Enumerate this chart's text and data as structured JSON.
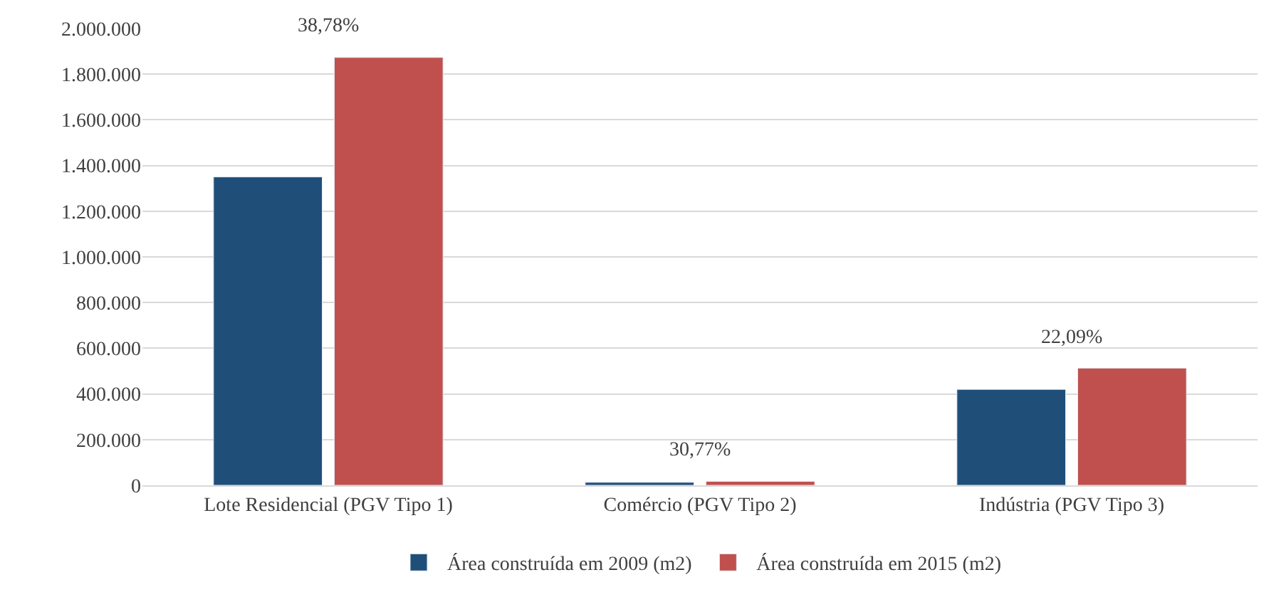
{
  "chart_data": {
    "type": "bar",
    "categories": [
      "Lote Residencial (PGV Tipo 1)",
      "Comércio (PGV Tipo 2)",
      "Indústria (PGV Tipo 3)"
    ],
    "series": [
      {
        "name": "Área construída em 2009 (m2)",
        "color": "#1f4e79",
        "values": [
          1350000,
          13000,
          420000
        ]
      },
      {
        "name": "Área construída em 2015 (m2)",
        "color": "#c0504d",
        "values": [
          1873000,
          17000,
          513000
        ]
      }
    ],
    "ylim": [
      0,
      2000000
    ],
    "yticks": [
      {
        "value": 0,
        "label": "0"
      },
      {
        "value": 200000,
        "label": "200.000"
      },
      {
        "value": 400000,
        "label": "400.000"
      },
      {
        "value": 600000,
        "label": "600.000"
      },
      {
        "value": 800000,
        "label": "800.000"
      },
      {
        "value": 1000000,
        "label": "1.000.000"
      },
      {
        "value": 1200000,
        "label": "1.200.000"
      },
      {
        "value": 1400000,
        "label": "1.400.000"
      },
      {
        "value": 1600000,
        "label": "1.600.000"
      },
      {
        "value": 1800000,
        "label": "1.800.000"
      },
      {
        "value": 2000000,
        "label": "2.000.000"
      }
    ],
    "annotations": [
      "38,78%",
      "30,77%",
      "22,09%"
    ],
    "grid": "y",
    "legend": "bottom"
  }
}
